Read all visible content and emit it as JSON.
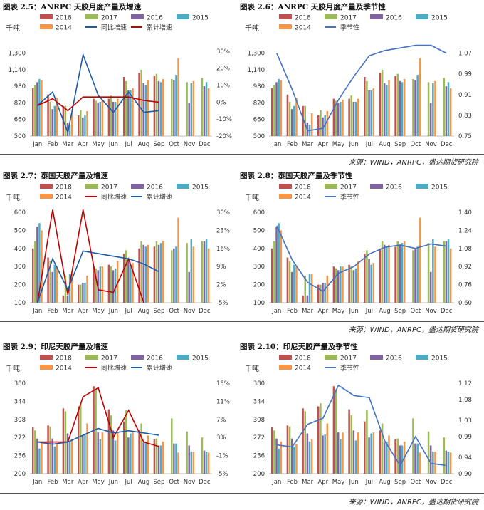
{
  "colors": {
    "2018": "#c0504d",
    "2017": "#9bbb59",
    "2016": "#8064a2",
    "2015": "#4bacc6",
    "2014": "#f79646",
    "yoy": "#c00000",
    "cum": "#1f5aa6",
    "seasonal": "#4472c4"
  },
  "sources": [
    "来源：WIND，ANRPC，盛达期货研究院",
    "来源：WIND，ANRPC，盛达期货研究院",
    "来源：WIND，ANRPC，盛达期货研究院"
  ],
  "chart_data": [
    {
      "id": "c25",
      "title": "图表 2.5：ANRPC 天胶月度产量及增速",
      "type": "bar",
      "unit": "千吨",
      "categories": [
        "Jan",
        "Feb",
        "Mar",
        "Apr",
        "May",
        "Jun",
        "Jul",
        "Aug",
        "Sep",
        "Oct",
        "Nov",
        "Dec"
      ],
      "ylim": [
        500,
        1400
      ],
      "yticks": [
        "500",
        "660",
        "820",
        "980",
        "1,140",
        "1,300"
      ],
      "y2lim": [
        -20,
        35
      ],
      "y2ticks": [
        "-20%",
        "-10%",
        "0%",
        "10%",
        "20%",
        "30%"
      ],
      "series": [
        {
          "name": "2018",
          "values": [
            960,
            900,
            790,
            700,
            860,
            860,
            1070,
            1110,
            1080,
            null,
            null,
            null
          ]
        },
        {
          "name": "2017",
          "values": [
            990,
            830,
            790,
            750,
            840,
            890,
            1030,
            1140,
            1100,
            1050,
            1020,
            1060
          ]
        },
        {
          "name": "2016",
          "values": [
            1020,
            760,
            630,
            680,
            820,
            830,
            940,
            1010,
            1030,
            1040,
            820,
            980
          ]
        },
        {
          "name": "2015",
          "values": [
            1050,
            790,
            610,
            700,
            830,
            830,
            940,
            990,
            1020,
            1090,
            1010,
            1020
          ]
        },
        {
          "name": "2014",
          "values": [
            1040,
            870,
            720,
            740,
            850,
            860,
            960,
            1040,
            1050,
            1250,
            1030,
            960
          ]
        }
      ],
      "lines": [
        {
          "name": "同比增速",
          "axis": "right",
          "colorKey": "cum",
          "values": [
            -2,
            6,
            -18,
            28,
            4,
            -6,
            6,
            -6,
            -5,
            null,
            null,
            null
          ]
        },
        {
          "name": "累计增速",
          "axis": "right",
          "colorKey": "yoy",
          "values": [
            -2,
            2,
            -5,
            3,
            3,
            3,
            3,
            1,
            0,
            null,
            null,
            null
          ]
        }
      ],
      "legend": [
        "2018",
        "2017",
        "2016",
        "2015",
        "2014",
        "同比增速",
        "累计增速"
      ]
    },
    {
      "id": "c26",
      "title": "图表 2.6：ANRPC 天胶月度产量及季节性",
      "type": "bar",
      "unit": "千吨",
      "categories": [
        "Jan",
        "Feb",
        "Mar",
        "Apr",
        "May",
        "Jun",
        "Jul",
        "Aug",
        "Sep",
        "Oct",
        "Nov",
        "Dec"
      ],
      "ylim": [
        500,
        1400
      ],
      "yticks": [
        "500",
        "660",
        "820",
        "980",
        "1,140",
        "1,300"
      ],
      "y2lim": [
        0.75,
        1.11
      ],
      "y2ticks": [
        "0.75",
        "0.83",
        "0.91",
        "0.99",
        "1.07"
      ],
      "series": [
        {
          "name": "2018",
          "values": [
            960,
            900,
            790,
            700,
            860,
            860,
            1070,
            1110,
            1080,
            null,
            null,
            null
          ]
        },
        {
          "name": "2017",
          "values": [
            990,
            830,
            790,
            750,
            840,
            890,
            1030,
            1140,
            1100,
            1050,
            1020,
            1060
          ]
        },
        {
          "name": "2016",
          "values": [
            1020,
            760,
            630,
            680,
            820,
            830,
            940,
            1010,
            1030,
            1040,
            820,
            980
          ]
        },
        {
          "name": "2015",
          "values": [
            1050,
            790,
            610,
            700,
            830,
            830,
            940,
            990,
            1020,
            1090,
            1010,
            1020
          ]
        },
        {
          "name": "2014",
          "values": [
            1040,
            870,
            720,
            740,
            850,
            860,
            960,
            1040,
            1050,
            1250,
            1030,
            960
          ]
        }
      ],
      "lines": [
        {
          "name": "季节性",
          "axis": "right",
          "colorKey": "seasonal",
          "values": [
            1.07,
            0.93,
            0.77,
            0.78,
            0.89,
            0.98,
            1.06,
            1.08,
            1.09,
            1.1,
            1.1,
            1.07
          ]
        }
      ],
      "legend": [
        "2018",
        "2017",
        "2016",
        "2015",
        "2014",
        "季节性"
      ]
    },
    {
      "id": "c27",
      "title": "图表 2.7：泰国天胶产量及增速",
      "type": "bar",
      "unit": "千吨",
      "categories": [
        "Jan",
        "Feb",
        "Mar",
        "Apr",
        "May",
        "Jun",
        "Jul",
        "Aug",
        "Sep",
        "Oct",
        "Nov",
        "Dec"
      ],
      "ylim": [
        100,
        600
      ],
      "yticks": [
        "100",
        "200",
        "300",
        "400",
        "500",
        "600"
      ],
      "y2lim": [
        -5,
        30
      ],
      "y2ticks": [
        "-5%",
        "2%",
        "9%",
        "16%",
        "23%",
        "30%"
      ],
      "series": [
        {
          "name": "2018",
          "values": [
            400,
            350,
            140,
            200,
            300,
            310,
            370,
            400,
            410,
            null,
            null,
            null
          ]
        },
        {
          "name": "2017",
          "values": [
            440,
            330,
            250,
            200,
            290,
            300,
            390,
            440,
            440,
            390,
            430,
            440
          ]
        },
        {
          "name": "2016",
          "values": [
            520,
            270,
            140,
            210,
            280,
            280,
            340,
            420,
            420,
            400,
            270,
            440
          ]
        },
        {
          "name": "2015",
          "values": [
            540,
            310,
            260,
            210,
            300,
            290,
            310,
            410,
            430,
            410,
            450,
            450
          ]
        },
        {
          "name": "2014",
          "values": [
            500,
            300,
            260,
            250,
            300,
            330,
            320,
            420,
            440,
            570,
            410,
            400
          ]
        }
      ],
      "lines": [
        {
          "name": "同比增速",
          "axis": "right",
          "colorKey": "yoy",
          "values": [
            -5,
            31,
            -2,
            31,
            0,
            -1,
            12,
            -5,
            null,
            null,
            null,
            null
          ]
        },
        {
          "name": "累计增速",
          "axis": "right",
          "colorKey": "cum",
          "values": [
            -5,
            12,
            0,
            15,
            14,
            13,
            12,
            10,
            7,
            null,
            null,
            null
          ]
        }
      ],
      "legend": [
        "2018",
        "2017",
        "2016",
        "2015",
        "2014",
        "同比增速",
        "累计增速"
      ]
    },
    {
      "id": "c28",
      "title": "图表 2.8：泰国天胶产量及季节性",
      "type": "bar",
      "unit": "千吨",
      "categories": [
        "Jan",
        "Feb",
        "Mar",
        "Apr",
        "May",
        "Jun",
        "Jul",
        "Aug",
        "Sep",
        "Oct",
        "Nov",
        "Dec"
      ],
      "ylim": [
        100,
        600
      ],
      "yticks": [
        "100",
        "200",
        "300",
        "400",
        "500",
        "600"
      ],
      "y2lim": [
        0.6,
        1.4
      ],
      "y2ticks": [
        "0.60",
        "0.76",
        "0.92",
        "1.08",
        "1.24",
        "1.40"
      ],
      "series": [
        {
          "name": "2018",
          "values": [
            400,
            350,
            140,
            200,
            300,
            310,
            370,
            400,
            410,
            null,
            null,
            null
          ]
        },
        {
          "name": "2017",
          "values": [
            440,
            330,
            250,
            200,
            290,
            300,
            390,
            440,
            440,
            390,
            430,
            440
          ]
        },
        {
          "name": "2016",
          "values": [
            520,
            270,
            140,
            210,
            280,
            280,
            340,
            420,
            420,
            400,
            270,
            440
          ]
        },
        {
          "name": "2015",
          "values": [
            540,
            310,
            260,
            210,
            300,
            290,
            310,
            410,
            430,
            410,
            450,
            450
          ]
        },
        {
          "name": "2014",
          "values": [
            500,
            300,
            260,
            250,
            300,
            330,
            320,
            420,
            440,
            570,
            410,
            400
          ]
        }
      ],
      "lines": [
        {
          "name": "季节性",
          "axis": "right",
          "colorKey": "seasonal",
          "values": [
            1.28,
            0.98,
            0.78,
            0.7,
            0.86,
            0.92,
            1.03,
            1.09,
            1.11,
            1.08,
            1.12,
            1.1
          ]
        }
      ],
      "legend": [
        "2018",
        "2017",
        "2016",
        "2015",
        "2014",
        "季节性"
      ]
    },
    {
      "id": "c29",
      "title": "图表 2.9：印尼天胶产量及增速",
      "type": "bar",
      "unit": "千吨",
      "categories": [
        "Jan",
        "Feb",
        "Mar",
        "Apr",
        "May",
        "Jun",
        "Jul",
        "Aug",
        "Sep",
        "Oct",
        "Nov",
        "Dec"
      ],
      "ylim": [
        200,
        380
      ],
      "yticks": [
        "200",
        "236",
        "272",
        "308",
        "344",
        "380"
      ],
      "y2lim": [
        -5,
        15
      ],
      "y2ticks": [
        "-5%",
        "-1%",
        "3%",
        "7%",
        "11%",
        "15%"
      ],
      "series": [
        {
          "name": "2018",
          "values": [
            292,
            296,
            330,
            334,
            374,
            328,
            304,
            286,
            268,
            null,
            null,
            null
          ]
        },
        {
          "name": "2017",
          "values": [
            286,
            294,
            324,
            340,
            368,
            316,
            326,
            300,
            270,
            310,
            284,
            272
          ]
        },
        {
          "name": "2016",
          "values": [
            270,
            270,
            280,
            276,
            282,
            286,
            272,
            262,
            256,
            260,
            256,
            246
          ]
        },
        {
          "name": "2015",
          "values": [
            250,
            254,
            264,
            278,
            268,
            266,
            280,
            264,
            256,
            260,
            244,
            244
          ]
        },
        {
          "name": "2014",
          "values": [
            264,
            258,
            268,
            300,
            282,
            282,
            282,
            276,
            264,
            242,
            244,
            242
          ]
        }
      ],
      "lines": [
        {
          "name": "同比增速",
          "axis": "right",
          "colorKey": "yoy",
          "values": [
            2,
            2,
            2,
            12,
            14,
            3,
            9,
            2,
            1,
            null,
            null,
            null
          ]
        },
        {
          "name": "累计增速",
          "axis": "right",
          "colorKey": "cum",
          "values": [
            2,
            1.5,
            2,
            3.5,
            5,
            4,
            4.5,
            4,
            3.5,
            null,
            null,
            null
          ]
        }
      ],
      "legend": [
        "2018",
        "2017",
        "2016",
        "2015",
        "2014",
        "同比增速",
        "累计增速"
      ]
    },
    {
      "id": "c210",
      "title": "图表 2.10：印尼天胶产量及季节性",
      "type": "bar",
      "unit": "千吨",
      "categories": [
        "Jan",
        "Feb",
        "Mar",
        "Apr",
        "May",
        "Jun",
        "Jul",
        "Aug",
        "Sep",
        "Oct",
        "Nov",
        "Dec"
      ],
      "ylim": [
        200,
        380
      ],
      "yticks": [
        "200",
        "236",
        "272",
        "308",
        "344",
        "380"
      ],
      "y2lim": [
        0.9,
        1.12
      ],
      "y2ticks": [
        "0.90",
        "0.94",
        "0.99",
        "1.03",
        "1.08",
        "1.12"
      ],
      "series": [
        {
          "name": "2018",
          "values": [
            292,
            296,
            330,
            334,
            374,
            328,
            304,
            286,
            268,
            null,
            null,
            null
          ]
        },
        {
          "name": "2017",
          "values": [
            286,
            294,
            324,
            340,
            368,
            316,
            326,
            300,
            270,
            310,
            284,
            272
          ]
        },
        {
          "name": "2016",
          "values": [
            270,
            270,
            280,
            276,
            282,
            286,
            272,
            262,
            256,
            260,
            256,
            246
          ]
        },
        {
          "name": "2015",
          "values": [
            250,
            254,
            264,
            278,
            268,
            266,
            280,
            264,
            256,
            260,
            244,
            244
          ]
        },
        {
          "name": "2014",
          "values": [
            264,
            258,
            268,
            300,
            282,
            282,
            282,
            276,
            264,
            242,
            244,
            242
          ]
        }
      ],
      "lines": [
        {
          "name": "季节性",
          "axis": "right",
          "colorKey": "seasonal",
          "values": [
            0.97,
            0.965,
            1.02,
            1.035,
            1.115,
            1.09,
            1.085,
            0.98,
            0.92,
            0.99,
            0.925,
            0.92
          ]
        }
      ],
      "legend": [
        "2018",
        "2017",
        "2016",
        "2015",
        "2014",
        "季节性"
      ]
    }
  ]
}
